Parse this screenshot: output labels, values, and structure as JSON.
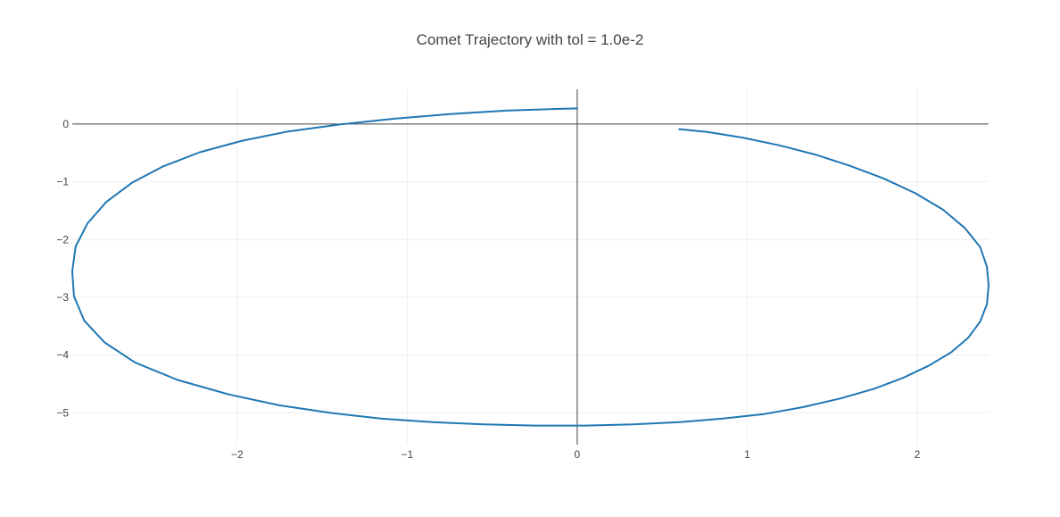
{
  "chart_data": {
    "type": "line",
    "title": "Comet Trajectory with tol = 1.0e-2",
    "xlabel": "",
    "ylabel": "",
    "xlim": [
      -2.97,
      2.42
    ],
    "ylim": [
      -5.55,
      0.6
    ],
    "grid": true,
    "legend": "none",
    "xticks": [
      -2,
      -1,
      0,
      1,
      2
    ],
    "xtick_labels": [
      "−2",
      "−1",
      "0",
      "1",
      "2"
    ],
    "yticks": [
      0,
      -1,
      -2,
      -3,
      -4,
      -5
    ],
    "ytick_labels": [
      "0",
      "−1",
      "−2",
      "−3",
      "−4",
      "−5"
    ],
    "series": [
      {
        "name": "trajectory",
        "color": "#1f77b4",
        "x": [
          0.6,
          0.77,
          0.98,
          1.19,
          1.4,
          1.6,
          1.8,
          1.99,
          2.15,
          2.28,
          2.37,
          2.41,
          2.42,
          2.41,
          2.37,
          2.3,
          2.2,
          2.07,
          1.92,
          1.75,
          1.55,
          1.33,
          1.1,
          0.85,
          0.6,
          0.33,
          0.05,
          -0.25,
          -0.55,
          -0.85,
          -1.15,
          -1.45,
          -1.75,
          -2.05,
          -2.35,
          -2.6,
          -2.78,
          -2.9,
          -2.96,
          -2.97,
          -2.95,
          -2.88,
          -2.77,
          -2.62,
          -2.44,
          -2.22,
          -1.97,
          -1.7,
          -1.4,
          -1.08,
          -0.75,
          -0.42,
          -0.12,
          0.0
        ],
        "y": [
          -0.09,
          -0.14,
          -0.24,
          -0.37,
          -0.53,
          -0.72,
          -0.94,
          -1.2,
          -1.48,
          -1.8,
          -2.13,
          -2.47,
          -2.8,
          -3.12,
          -3.42,
          -3.7,
          -3.95,
          -4.18,
          -4.39,
          -4.58,
          -4.75,
          -4.9,
          -5.02,
          -5.1,
          -5.16,
          -5.2,
          -5.22,
          -5.22,
          -5.2,
          -5.16,
          -5.1,
          -5.0,
          -4.87,
          -4.68,
          -4.43,
          -4.13,
          -3.78,
          -3.4,
          -2.98,
          -2.55,
          -2.12,
          -1.72,
          -1.35,
          -1.02,
          -0.74,
          -0.49,
          -0.29,
          -0.13,
          -0.01,
          0.09,
          0.17,
          0.23,
          0.26,
          0.27
        ]
      }
    ]
  }
}
